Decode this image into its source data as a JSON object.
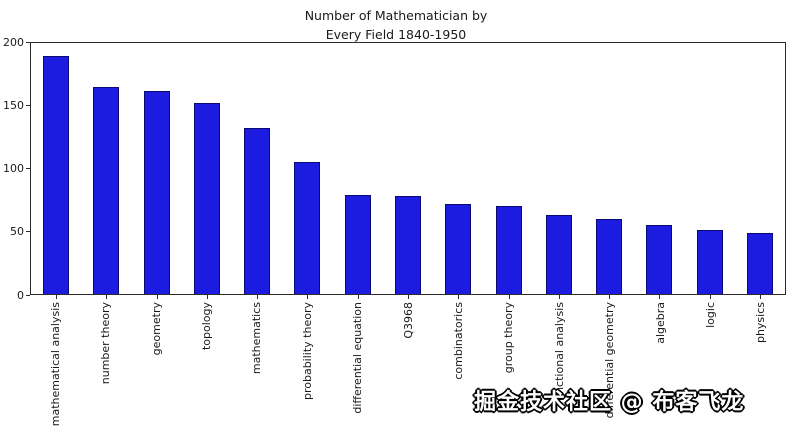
{
  "chart_data": {
    "type": "bar",
    "title": "Number of Mathematician by\nEvery Field 1840-1950",
    "categories": [
      "mathematical analysis",
      "number theory",
      "geometry",
      "topology",
      "mathematics",
      "probability theory",
      "differential equation",
      "Q3968",
      "combinatorics",
      "group theory",
      "functional analysis",
      "differential geometry",
      "algebra",
      "logic",
      "physics"
    ],
    "values": [
      190,
      165,
      162,
      152,
      132,
      105,
      79,
      78,
      72,
      70,
      63,
      60,
      55,
      51,
      49
    ],
    "xlabel": "",
    "ylabel": "",
    "ylim": [
      0,
      200
    ],
    "yticks": [
      0,
      50,
      100,
      150,
      200
    ],
    "grid": false,
    "legend": false,
    "bar_color": "#1c1ce0",
    "bar_edge_color": "#0a0a72",
    "axis_color": "#2b2b2b"
  },
  "watermark": {
    "text": "掘金技术社区 @ 布客飞龙"
  }
}
